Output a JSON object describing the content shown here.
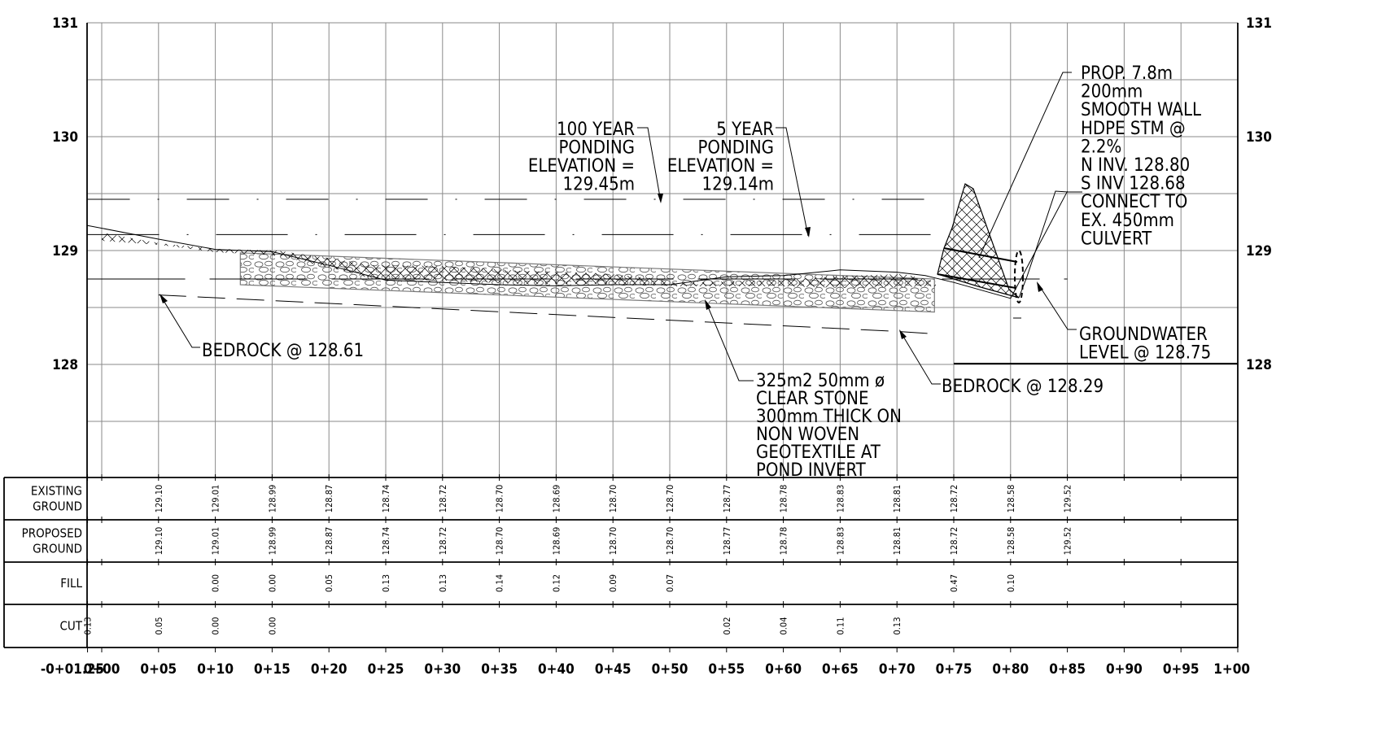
{
  "elevation_axis": {
    "ticks": [
      {
        "value": 131,
        "label": "131"
      },
      {
        "value": 130,
        "label": "130"
      },
      {
        "value": 129,
        "label": "129"
      },
      {
        "value": 128,
        "label": "128"
      }
    ],
    "grid_interval": 0.5,
    "ymin": 127,
    "ymax": 131
  },
  "station_axis": {
    "labels": [
      "-0+01.25",
      "0+00",
      "0+05",
      "0+10",
      "0+15",
      "0+20",
      "0+25",
      "0+30",
      "0+35",
      "0+40",
      "0+45",
      "0+50",
      "0+55",
      "0+60",
      "0+65",
      "0+70",
      "0+75",
      "0+80",
      "0+85",
      "0+90",
      "0+95",
      "1+00"
    ],
    "positions_m": [
      -1.25,
      0,
      5,
      10,
      15,
      20,
      25,
      30,
      35,
      40,
      45,
      50,
      55,
      60,
      65,
      70,
      75,
      80,
      85,
      90,
      95,
      100
    ],
    "data_columns_m": [
      -1.25,
      5,
      10,
      15,
      20,
      25,
      30,
      35,
      40,
      45,
      50,
      55,
      60,
      65,
      70,
      75,
      80,
      85
    ]
  },
  "table": {
    "rows": [
      {
        "key": "existing",
        "label_lines": [
          "EXISTING",
          "GROUND"
        ],
        "values": [
          "",
          "129.10",
          "129.01",
          "128.99",
          "128.87",
          "128.74",
          "128.72",
          "128.70",
          "128.69",
          "128.70",
          "128.70",
          "128.77",
          "128.78",
          "128.83",
          "128.81",
          "128.72",
          "128.58",
          "129.52"
        ]
      },
      {
        "key": "proposed",
        "label_lines": [
          "PROPOSED",
          "GROUND"
        ],
        "values": [
          "",
          "129.10",
          "129.01",
          "128.99",
          "128.87",
          "128.74",
          "128.72",
          "128.70",
          "128.69",
          "128.70",
          "128.70",
          "128.77",
          "128.78",
          "128.83",
          "128.81",
          "128.72",
          "128.58",
          "129.52"
        ]
      },
      {
        "key": "fill",
        "label_lines": [
          "FILL"
        ],
        "values": [
          "",
          "",
          "0.00",
          "0.00",
          "0.05",
          "0.13",
          "0.13",
          "0.14",
          "0.12",
          "0.09",
          "0.07",
          "",
          "",
          "",
          "",
          "0.47",
          "0.10",
          ""
        ]
      },
      {
        "key": "cut",
        "label_lines": [
          "CUT"
        ],
        "values": [
          "0.13",
          "0.05",
          "0.00",
          "0.00",
          "",
          "",
          "",
          "",
          "",
          "",
          "",
          "0.02",
          "0.04",
          "0.11",
          "0.13",
          "",
          "",
          ""
        ]
      }
    ]
  },
  "profile": {
    "ground_line": [
      [
        -1.25,
        129.22
      ],
      [
        5,
        129.1
      ],
      [
        10,
        129.01
      ],
      [
        15,
        128.99
      ],
      [
        20,
        128.87
      ],
      [
        25,
        128.74
      ],
      [
        30,
        128.72
      ],
      [
        35,
        128.7
      ],
      [
        40,
        128.69
      ],
      [
        45,
        128.7
      ],
      [
        50,
        128.7
      ],
      [
        55,
        128.77
      ],
      [
        60,
        128.78
      ],
      [
        65,
        128.83
      ],
      [
        70,
        128.81
      ],
      [
        72.5,
        128.78
      ],
      [
        75,
        128.72
      ],
      [
        80,
        128.58
      ],
      [
        85,
        129.52
      ]
    ],
    "stone_layer": {
      "from_m": 12.2,
      "to_m": 73.3,
      "top_left": 128.98,
      "top_right": 128.75,
      "bottom_left": 128.7,
      "bottom_right": 128.46
    },
    "bedrock_line": [
      [
        5,
        128.61
      ],
      [
        70,
        128.29
      ],
      [
        73,
        128.27
      ]
    ],
    "water_levels": [
      {
        "name": "100yr",
        "elevation": 129.45,
        "from_m": -1.25,
        "to_m": 74.5
      },
      {
        "name": "5yr",
        "elevation": 129.14,
        "from_m": -1.25,
        "to_m": 74.5
      },
      {
        "name": "groundwater",
        "elevation": 128.75,
        "from_m": -1.25,
        "to_m": 85
      }
    ]
  },
  "annotations": {
    "pond100_lines": [
      "100 YEAR",
      "PONDING",
      "ELEVATION =",
      "129.45m"
    ],
    "pond5_lines": [
      "5 YEAR",
      "PONDING",
      "ELEVATION =",
      "129.14m"
    ],
    "pipe_lines": [
      "PROP. 7.8m",
      "200mm",
      "SMOOTH WALL",
      "HDPE STM @",
      "2.2%",
      "N INV. 128.80",
      "S INV 128.68",
      "CONNECT TO",
      "EX. 450mm",
      "CULVERT"
    ],
    "stone_lines": [
      "325m2 50mm ø",
      "CLEAR STONE",
      "300mm THICK ON",
      "NON WOVEN",
      "GEOTEXTILE AT",
      "POND INVERT"
    ],
    "bedrock_left": "BEDROCK @ 128.61",
    "bedrock_right": "BEDROCK @ 128.29",
    "groundwater_lines": [
      "GROUNDWATER",
      "LEVEL @ 128.75"
    ]
  }
}
